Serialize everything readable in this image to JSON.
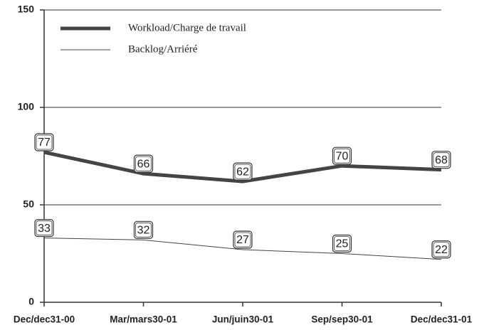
{
  "chart_data": {
    "type": "line",
    "categories": [
      "Dec/dec31-00",
      "Mar/mars30-01",
      "Jun/juin30-01",
      "Sep/sep30-01",
      "Dec/dec31-01"
    ],
    "series": [
      {
        "name": "Workload/Charge de travail",
        "color": "#444444",
        "values": [
          77,
          66,
          62,
          70,
          68
        ]
      },
      {
        "name": "Backlog/Arriéré",
        "color": "#444444",
        "values": [
          33,
          32,
          27,
          25,
          22
        ]
      }
    ],
    "ylim": [
      0,
      150
    ],
    "yticks": [
      0,
      50,
      100,
      150
    ],
    "grid": true,
    "legend": "top-left"
  }
}
